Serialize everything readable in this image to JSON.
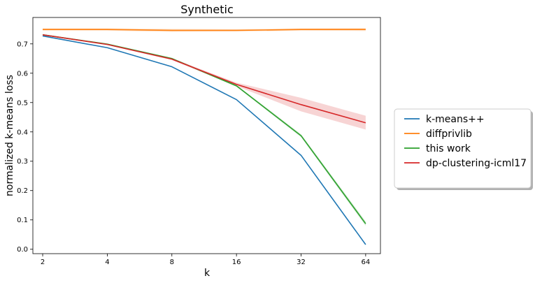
{
  "chart_data": {
    "type": "line",
    "title": "Synthetic",
    "xlabel": "k",
    "ylabel": "normalized k-means loss",
    "x": [
      2,
      4,
      8,
      16,
      32,
      64
    ],
    "x_scale": "log2",
    "xlim": [
      1.8,
      75
    ],
    "ylim": [
      -0.015,
      0.79
    ],
    "yticks": [
      0.0,
      0.1,
      0.2,
      0.3,
      0.4,
      0.5,
      0.6,
      0.7
    ],
    "ytick_labels": [
      "0.0",
      "0.1",
      "0.2",
      "0.3",
      "0.4",
      "0.5",
      "0.6",
      "0.7"
    ],
    "xtick_labels": [
      "2",
      "4",
      "8",
      "16",
      "32",
      "64"
    ],
    "grid": false,
    "legend_placement": "right-outside",
    "series": [
      {
        "name": "k-means++",
        "color": "#1f77b4",
        "values": [
          0.727,
          0.687,
          0.622,
          0.51,
          0.32,
          0.016
        ],
        "lower": [
          0.727,
          0.687,
          0.622,
          0.51,
          0.32,
          0.016
        ],
        "upper": [
          0.727,
          0.687,
          0.622,
          0.51,
          0.32,
          0.016
        ]
      },
      {
        "name": "diffprivlib",
        "color": "#ff7f0e",
        "values": [
          0.749,
          0.749,
          0.746,
          0.746,
          0.749,
          0.749
        ],
        "lower": [
          0.745,
          0.745,
          0.741,
          0.742,
          0.745,
          0.744
        ],
        "upper": [
          0.753,
          0.753,
          0.751,
          0.75,
          0.753,
          0.754
        ]
      },
      {
        "name": "this work",
        "color": "#2ca02c",
        "values": [
          0.731,
          0.699,
          0.65,
          0.557,
          0.387,
          0.087
        ],
        "lower": [
          0.729,
          0.697,
          0.648,
          0.554,
          0.382,
          0.08
        ],
        "upper": [
          0.733,
          0.701,
          0.652,
          0.56,
          0.392,
          0.095
        ]
      },
      {
        "name": "dp-clustering-icml17",
        "color": "#d62728",
        "values": [
          0.731,
          0.698,
          0.648,
          0.562,
          0.493,
          0.431
        ],
        "lower": [
          0.729,
          0.696,
          0.645,
          0.556,
          0.47,
          0.408
        ],
        "upper": [
          0.733,
          0.7,
          0.651,
          0.568,
          0.516,
          0.455
        ]
      }
    ]
  }
}
